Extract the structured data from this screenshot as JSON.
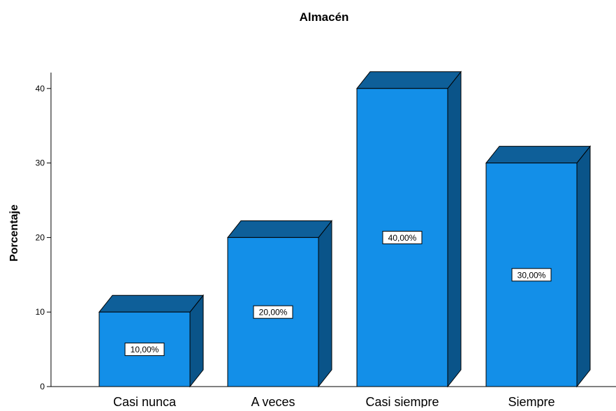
{
  "chart_data": {
    "type": "bar",
    "title": "Almacén",
    "xlabel": "",
    "ylabel": "Porcentaje",
    "categories": [
      "Casi nunca",
      "A veces",
      "Casi siempre",
      "Siempre"
    ],
    "values": [
      10,
      20,
      40,
      30
    ],
    "data_labels": [
      "10,00%",
      "20,00%",
      "40,00%",
      "30,00%"
    ],
    "ylim": [
      0,
      40
    ],
    "yticks": [
      0,
      10,
      20,
      30,
      40
    ],
    "ytick_labels": [
      "0",
      "10",
      "20",
      "30",
      "40"
    ],
    "grid": false,
    "style": "3d",
    "colors": {
      "bar_front": "#138fe8",
      "bar_side": "#0a5489",
      "bar_top": "#0e5f99",
      "outline": "#000000"
    }
  }
}
